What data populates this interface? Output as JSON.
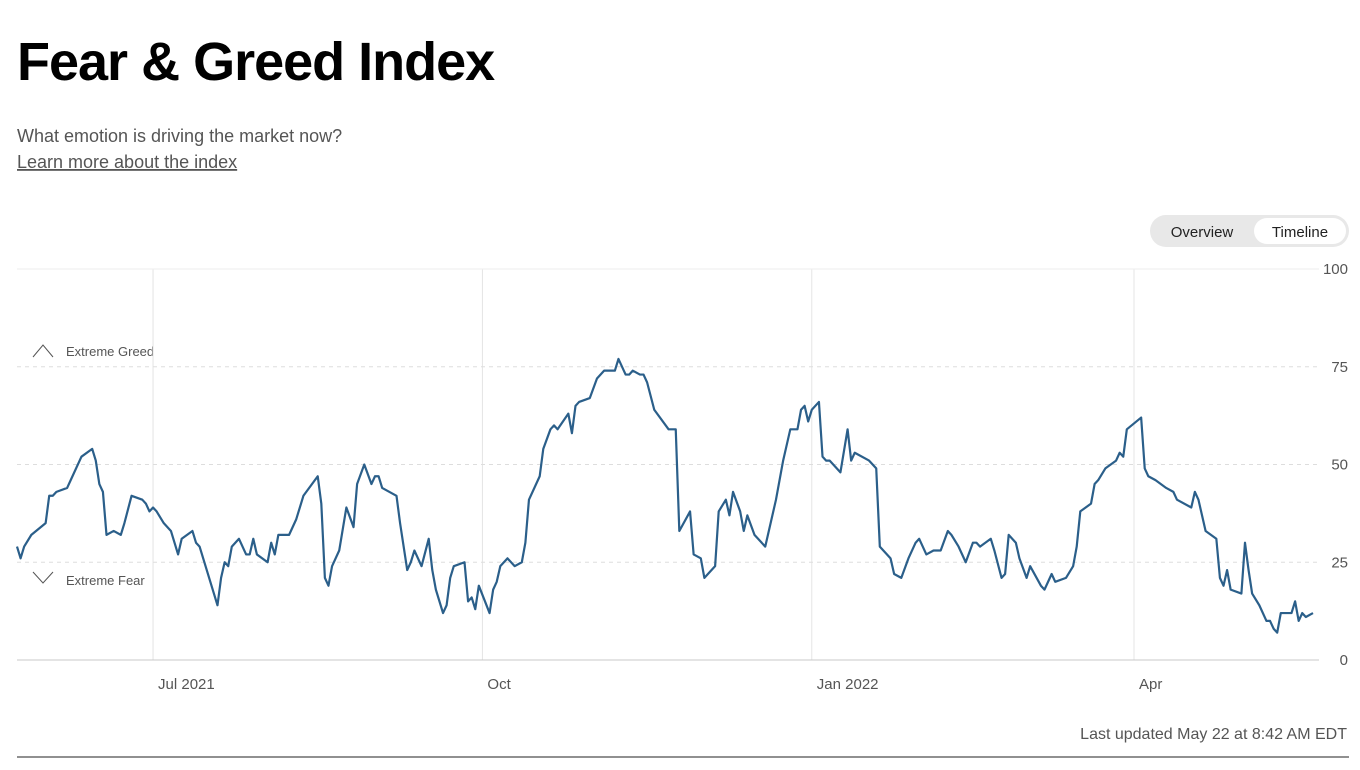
{
  "header": {
    "title": "Fear & Greed Index",
    "subtitle": "What emotion is driving the market now?",
    "link": "Learn more about the index"
  },
  "tabs": [
    "Overview",
    "Timeline"
  ],
  "chart_data": {
    "type": "line",
    "x": [
      0,
      1,
      2,
      4,
      8,
      9,
      10,
      11,
      14,
      15,
      18,
      21,
      22,
      23,
      24,
      25,
      27,
      29,
      30,
      32,
      35,
      36,
      37,
      38,
      39,
      41,
      43,
      45,
      46,
      49,
      50,
      51,
      53,
      55,
      56,
      57,
      58,
      59,
      60,
      62,
      64,
      65,
      66,
      67,
      70,
      71,
      72,
      73,
      76,
      78,
      80,
      84,
      85,
      86,
      87,
      88,
      90,
      92,
      94,
      95,
      97,
      99,
      100,
      101,
      102,
      106,
      107,
      109,
      110,
      111,
      113,
      115,
      116,
      117,
      119,
      120,
      121,
      122,
      125,
      126,
      127,
      128,
      129,
      132,
      133,
      134,
      135,
      137,
      139,
      141,
      142,
      143,
      146,
      147,
      149,
      150,
      151,
      154,
      155,
      156,
      157,
      160,
      162,
      164,
      167,
      168,
      170,
      171,
      172,
      174,
      175,
      176,
      178,
      182,
      184,
      185,
      188,
      189,
      191,
      192,
      195,
      196,
      198,
      199,
      200,
      202,
      203,
      204,
      206,
      209,
      212,
      214,
      216,
      218,
      219,
      220,
      221,
      222,
      224,
      225,
      226,
      227,
      230,
      232,
      233,
      234,
      238,
      240,
      241,
      244,
      245,
      247,
      249,
      251,
      252,
      254,
      256,
      258,
      260,
      261,
      263,
      265,
      267,
      268,
      269,
      272,
      273,
      275,
      276,
      277,
      279,
      280,
      282,
      283,
      286,
      287,
      289,
      290,
      293,
      295,
      296,
      297,
      300,
      301,
      302,
      304,
      307,
      308,
      309,
      310,
      314,
      315,
      316,
      318,
      321,
      323,
      324,
      328,
      329,
      330,
      332,
      335,
      336,
      337,
      338,
      339,
      342,
      343,
      344,
      345,
      347,
      349,
      350,
      351,
      352,
      353,
      355,
      356,
      357,
      358,
      359,
      360,
      362
    ],
    "series": [
      {
        "color": "#2b5f8a",
        "values": [
          29,
          26,
          29,
          32,
          35,
          42,
          42,
          43,
          44,
          46,
          52,
          54,
          51,
          45,
          43,
          32,
          33,
          32,
          35,
          42,
          41,
          40,
          38,
          39,
          38,
          35,
          33,
          27,
          31,
          33,
          30,
          29,
          23,
          17,
          14,
          21,
          25,
          24,
          29,
          31,
          27,
          27,
          31,
          27,
          25,
          30,
          27,
          32,
          32,
          36,
          42,
          47,
          40,
          21,
          19,
          24,
          28,
          39,
          34,
          45,
          50,
          45,
          47,
          47,
          44,
          42,
          35,
          23,
          25,
          28,
          24,
          31,
          23,
          18,
          12,
          14,
          21,
          24,
          25,
          15,
          16,
          13,
          19,
          12,
          18,
          20,
          24,
          26,
          24,
          25,
          30,
          41,
          47,
          54,
          59,
          60,
          59,
          63,
          58,
          65,
          66,
          67,
          72,
          74,
          74,
          77,
          73,
          73,
          74,
          73,
          73,
          71,
          64,
          59,
          59,
          33,
          38,
          27,
          26,
          21,
          24,
          38,
          41,
          37,
          43,
          38,
          33,
          37,
          32,
          29,
          41,
          51,
          59,
          59,
          64,
          65,
          61,
          64,
          66,
          52,
          51,
          51,
          48,
          59,
          51,
          53,
          51,
          49,
          29,
          26,
          22,
          21,
          26,
          30,
          31,
          27,
          28,
          28,
          33,
          32,
          29,
          25,
          30,
          30,
          29,
          31,
          28,
          21,
          22,
          32,
          30,
          26,
          21,
          24,
          19,
          18,
          22,
          20,
          21,
          24,
          29,
          38,
          40,
          45,
          46,
          49,
          51,
          53,
          52,
          59,
          62,
          49,
          47,
          46,
          44,
          43,
          41,
          39,
          43,
          41,
          33,
          31,
          21,
          19,
          23,
          18,
          17,
          30,
          23,
          17,
          14,
          10,
          10,
          8,
          7,
          12,
          12,
          12,
          15,
          10,
          12,
          11,
          12
        ]
      }
    ],
    "xlim": [
      0,
      362
    ],
    "xticks": [
      {
        "value": 38,
        "label": "Jul 2021"
      },
      {
        "value": 130,
        "label": "Oct"
      },
      {
        "value": 222,
        "label": "Jan 2022"
      },
      {
        "value": 312,
        "label": "Apr"
      }
    ],
    "ylim": [
      0,
      100
    ],
    "yticks": [
      0,
      25,
      50,
      75,
      100
    ],
    "grid": true,
    "annotations": [
      "Extreme Greed",
      "Extreme Fear"
    ]
  },
  "footer": {
    "updated": "Last updated May 22 at 8:42 AM EDT"
  }
}
